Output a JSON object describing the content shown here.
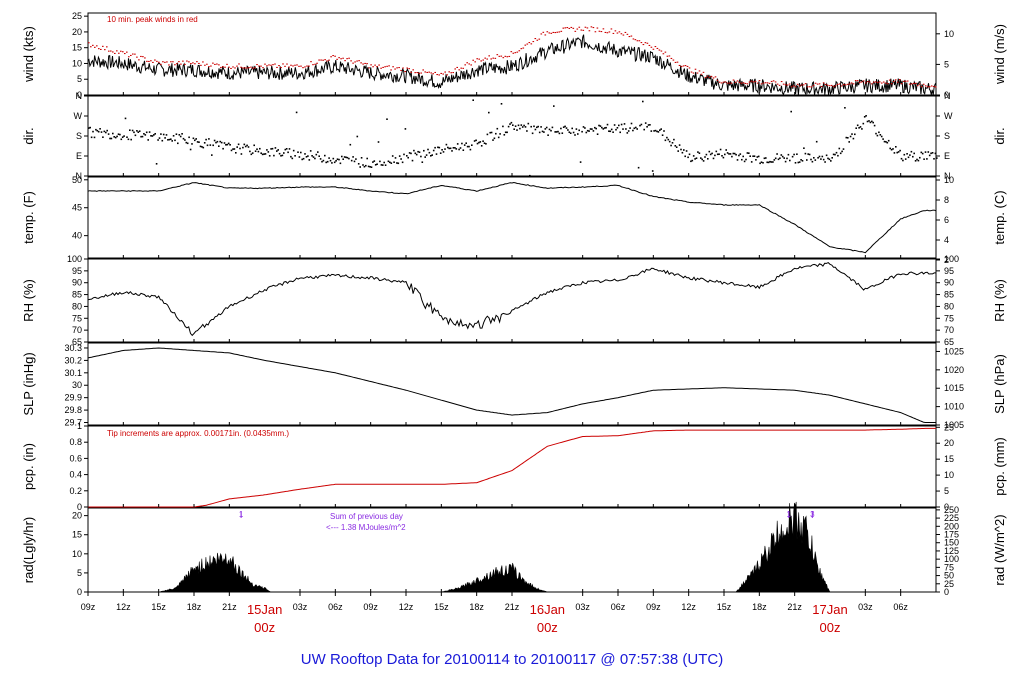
{
  "title": "UW Rooftop Data for 20100114  to  20100117 @ 07:57:38  (UTC)",
  "colors": {
    "red": "#cc0000",
    "black": "#000000",
    "purple": "#8a2be2",
    "title": "#1a1ad8"
  },
  "notes": {
    "peak_winds": "10 min. peak winds in red",
    "tip_increments": "Tip increments are approx. 0.00171in. (0.0435mm.)",
    "sum_line1": "Sum of previous day",
    "sum_line2": "<--- 1.38 MJoules/m^2"
  },
  "chart_data": [
    {
      "type": "line",
      "id": "wind",
      "ylabel": "wind (kts)",
      "ylabel_right": "wind (m/s)",
      "ylim": [
        0,
        26
      ],
      "yticks": [
        0,
        5,
        10,
        15,
        20,
        25
      ],
      "ylim_right": [
        0,
        13.4
      ],
      "yticks_right": [
        0,
        5,
        10
      ],
      "x_hours": [
        0,
        3,
        6,
        9,
        12,
        15,
        18,
        21,
        24,
        27,
        30,
        33,
        36,
        39,
        42,
        45,
        48,
        51,
        54,
        57,
        60,
        63,
        66,
        69,
        71
      ],
      "series": [
        {
          "color": "#000000",
          "values": [
            11,
            10,
            8,
            8,
            7,
            7,
            7,
            9,
            7,
            6,
            4,
            8,
            9,
            14,
            17,
            14,
            12,
            6,
            3,
            3,
            2,
            2,
            3,
            3,
            2
          ]
        },
        {
          "color": "#cc0000",
          "values": [
            16,
            13,
            10,
            10,
            9,
            9,
            9,
            12,
            9,
            8,
            6,
            11,
            13,
            20,
            21,
            20,
            15,
            8,
            4,
            4,
            3,
            3,
            4,
            4,
            3
          ]
        }
      ]
    },
    {
      "type": "scatter",
      "id": "dir",
      "ylabel": "dir.",
      "ylabel_right": "dir.",
      "ylim": [
        0,
        360
      ],
      "ytick_values": [
        0,
        90,
        180,
        270,
        360
      ],
      "yticks": [
        "N",
        "E",
        "S",
        "W",
        "N"
      ],
      "x_hours": [
        0,
        3,
        6,
        9,
        12,
        15,
        18,
        21,
        24,
        27,
        30,
        33,
        36,
        39,
        42,
        45,
        48,
        51,
        54,
        57,
        60,
        63,
        66,
        69,
        71
      ],
      "values": [
        200,
        190,
        180,
        160,
        130,
        115,
        100,
        80,
        60,
        90,
        120,
        150,
        230,
        200,
        210,
        215,
        225,
        85,
        105,
        80,
        85,
        75,
        260,
        90,
        95
      ]
    },
    {
      "type": "line",
      "id": "temp",
      "ylabel": "temp. (F)",
      "ylabel_right": "temp. (C)",
      "ylim": [
        36,
        50.5
      ],
      "yticks": [
        40,
        45,
        50
      ],
      "ylim_right": [
        2.2,
        10.3
      ],
      "yticks_right": [
        2,
        4,
        6,
        8,
        10
      ],
      "x_hours": [
        0,
        3,
        6,
        9,
        12,
        15,
        18,
        21,
        24,
        27,
        30,
        33,
        36,
        39,
        42,
        45,
        48,
        51,
        54,
        57,
        60,
        63,
        66,
        69,
        71
      ],
      "values": [
        48,
        48,
        48,
        49.5,
        48.5,
        48.5,
        48.7,
        48.7,
        48,
        47.5,
        49,
        48,
        49.5,
        48.5,
        48.7,
        49,
        47,
        46,
        45.5,
        45.5,
        42,
        38,
        37,
        43,
        44.5
      ]
    },
    {
      "type": "line",
      "id": "rh",
      "ylabel": "RH (%)",
      "ylabel_right": "RH (%)",
      "ylim": [
        65,
        100
      ],
      "yticks": [
        65,
        70,
        75,
        80,
        85,
        90,
        95,
        100
      ],
      "x_hours": [
        0,
        3,
        6,
        9,
        12,
        15,
        18,
        21,
        24,
        27,
        30,
        33,
        36,
        39,
        42,
        45,
        48,
        51,
        54,
        57,
        60,
        63,
        66,
        69,
        71
      ],
      "values": [
        83,
        86,
        84,
        68,
        80,
        87,
        92,
        93,
        92,
        90,
        75,
        72,
        78,
        86,
        90,
        91,
        96,
        92,
        90,
        88,
        96,
        98,
        87,
        94,
        94
      ]
    },
    {
      "type": "line",
      "id": "slp",
      "ylabel": "SLP (inHg)",
      "ylabel_right": "SLP (hPa)",
      "ylim": [
        29.68,
        30.34
      ],
      "yticks": [
        29.7,
        29.8,
        29.9,
        30.0,
        30.1,
        30.2,
        30.3
      ],
      "ylim_right": [
        1005,
        1027.3
      ],
      "yticks_right": [
        1005,
        1010,
        1015,
        1020,
        1025
      ],
      "x_hours": [
        0,
        3,
        6,
        9,
        12,
        15,
        18,
        21,
        24,
        27,
        30,
        33,
        36,
        39,
        42,
        45,
        48,
        51,
        54,
        57,
        60,
        63,
        66,
        69,
        71
      ],
      "values": [
        30.22,
        30.28,
        30.3,
        30.28,
        30.26,
        30.2,
        30.15,
        30.1,
        30.03,
        29.96,
        29.88,
        29.8,
        29.76,
        29.78,
        29.85,
        29.9,
        29.96,
        29.97,
        29.98,
        29.97,
        29.96,
        29.92,
        29.85,
        29.78,
        29.7
      ]
    },
    {
      "type": "line",
      "id": "pcp",
      "ylabel": "pcp. (in)",
      "ylabel_right": "pcp. (mm)",
      "ylim": [
        0,
        1.0
      ],
      "yticks": [
        0.0,
        0.2,
        0.4,
        0.6,
        0.8,
        1.0
      ],
      "ylim_right": [
        0,
        25.4
      ],
      "yticks_right": [
        0,
        5,
        10,
        15,
        20,
        25
      ],
      "x_hours": [
        0,
        3,
        6,
        9,
        10,
        12,
        15,
        18,
        21,
        24,
        27,
        30,
        33,
        36,
        39,
        42,
        45,
        48,
        51,
        54,
        57,
        60,
        63,
        66,
        69,
        71
      ],
      "values": [
        0,
        0,
        0,
        0,
        0.02,
        0.1,
        0.15,
        0.22,
        0.28,
        0.28,
        0.28,
        0.28,
        0.3,
        0.45,
        0.75,
        0.87,
        0.88,
        0.94,
        0.95,
        0.95,
        0.95,
        0.95,
        0.95,
        0.95,
        0.96,
        0.97
      ]
    },
    {
      "type": "area",
      "id": "rad",
      "ylabel": "rad(Lgly/hr)",
      "ylabel_right": "rad (W/m^2)",
      "ylim": [
        0,
        22
      ],
      "yticks": [
        0,
        5,
        10,
        15,
        20
      ],
      "ylim_right": [
        0,
        255.7
      ],
      "yticks_right": [
        0,
        25,
        50,
        75,
        100,
        125,
        150,
        175,
        200,
        225,
        250
      ],
      "x_hours": [
        0,
        6,
        7.5,
        9,
        10.5,
        12,
        13,
        14,
        15,
        15.5,
        30,
        31.5,
        33,
        34.5,
        36,
        37,
        38,
        39,
        55,
        56.5,
        58,
        59,
        60,
        61,
        62,
        63
      ],
      "values": [
        0,
        0,
        1,
        6,
        8,
        9,
        5,
        2,
        1,
        0,
        0,
        1,
        3,
        5,
        6,
        3,
        1,
        0,
        0,
        5,
        12,
        17,
        19,
        16,
        6,
        0
      ],
      "markers": [
        {
          "x": 13,
          "label": "1"
        },
        {
          "x": 59.5,
          "label": "1"
        },
        {
          "x": 61.5,
          "label": "3"
        }
      ]
    }
  ],
  "x_axis": {
    "tick_labels": [
      "09z",
      "12z",
      "15z",
      "18z",
      "21z",
      "03z",
      "06z",
      "09z",
      "12z",
      "15z",
      "18z",
      "21z",
      "03z",
      "06z",
      "09z",
      "12z",
      "15z",
      "18z",
      "21z",
      "03z",
      "06z"
    ],
    "tick_hours": [
      0,
      3,
      6,
      9,
      12,
      18,
      21,
      24,
      27,
      30,
      33,
      36,
      42,
      45,
      48,
      51,
      54,
      57,
      60,
      66,
      69
    ],
    "day_labels": [
      {
        "date": "Jan",
        "time": "z",
        "hour": -15
      },
      {
        "date": "15Jan",
        "time": "00z",
        "hour": 15
      },
      {
        "date": "16Jan",
        "time": "00z",
        "hour": 39
      },
      {
        "date": "17Jan",
        "time": "00z",
        "hour": 63
      }
    ]
  }
}
